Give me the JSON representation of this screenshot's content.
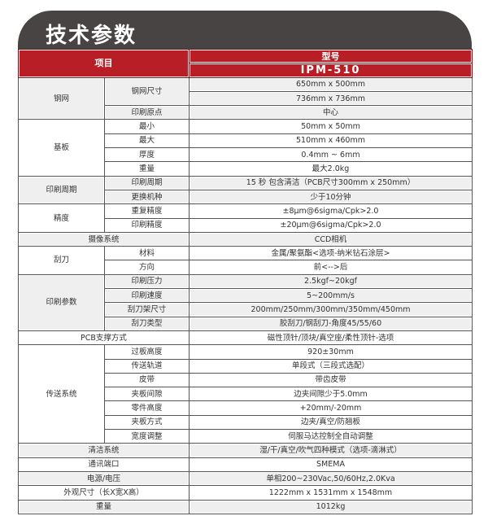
{
  "title": "技术参数",
  "header": {
    "item": "项目",
    "model_label": "型号",
    "model": "IPM-510"
  },
  "colors": {
    "banner": "#484443",
    "header_red": "#b71e25",
    "row_gray": "#efeff0"
  },
  "groups": [
    {
      "label": "钢网",
      "shade": "g",
      "items": [
        {
          "name": "钢网尺寸",
          "values": [
            "650mm x 500mm",
            "736mm x 736mm"
          ]
        },
        {
          "name": "印刷原点",
          "values": [
            "中心"
          ]
        }
      ]
    },
    {
      "label": "基板",
      "shade": "w",
      "items": [
        {
          "name": "最小",
          "values": [
            "50mm x 50mm"
          ]
        },
        {
          "name": "最大",
          "values": [
            "510mm x 460mm"
          ]
        },
        {
          "name": "厚度",
          "values": [
            "0.4mm ~ 6mm"
          ]
        },
        {
          "name": "重量",
          "values": [
            "最大2.0kg"
          ]
        }
      ]
    },
    {
      "label": "印刷周期",
      "shade": "g",
      "items": [
        {
          "name": "印刷周期",
          "values": [
            "15 秒 包含清洁（PCB尺寸300mm x 250mm）"
          ]
        },
        {
          "name": "更换机种",
          "values": [
            "少于10分钟"
          ]
        }
      ]
    },
    {
      "label": "精度",
      "shade": "w",
      "items": [
        {
          "name": "重复精度",
          "values": [
            "±8μm@6sigma/Cpk>2.0"
          ]
        },
        {
          "name": "印刷精度",
          "values": [
            "±20μm@6sigma/Cpk>2.0"
          ]
        }
      ]
    },
    {
      "label": "摄像系统",
      "shade": "g",
      "value": "CCD相机"
    },
    {
      "label": "刮刀",
      "shade": "w",
      "items": [
        {
          "name": "材料",
          "values": [
            "金属/聚氨酯<选项-纳米钻石涂层>"
          ]
        },
        {
          "name": "方向",
          "values": [
            "前<-->后"
          ]
        }
      ]
    },
    {
      "label": "印刷参数",
      "shade": "g",
      "items": [
        {
          "name": "印刷压力",
          "values": [
            "2.5kgf~20kgf"
          ]
        },
        {
          "name": "印刷速度",
          "values": [
            "5~200mm/s"
          ]
        },
        {
          "name": "刮刀架尺寸",
          "values": [
            "200mm/250mm/300mm/350mm/450mm"
          ]
        },
        {
          "name": "刮刀类型",
          "values": [
            "胶刮刀/钢刮刀-角度45/55/60"
          ]
        }
      ]
    },
    {
      "label": "PCB支撑方式",
      "shade": "w",
      "value": "磁性顶针/顶块/真空座/柔性顶针-选项"
    },
    {
      "label": "传送系统",
      "shade": "w",
      "items": [
        {
          "name": "过板高度",
          "values": [
            "920±30mm"
          ]
        },
        {
          "name": "传送轨道",
          "values": [
            "单段式（三段式选配）"
          ]
        },
        {
          "name": "皮带",
          "values": [
            "带齿皮带"
          ]
        },
        {
          "name": "夹板间隙",
          "values": [
            "边夹间隙少于5.0mm"
          ]
        },
        {
          "name": "零件高度",
          "values": [
            "+20mm/-20mm"
          ]
        },
        {
          "name": "夹板方式",
          "values": [
            "边夹/真空/防翘板"
          ]
        },
        {
          "name": "宽度调整",
          "values": [
            "伺服马达控制全自动调整"
          ]
        }
      ]
    },
    {
      "label": "清洁系统",
      "shade": "g",
      "value": "湿/干/真空/吹气四种模式（选项-滴淋式）"
    },
    {
      "label": "通讯端口",
      "shade": "w",
      "value": "SMEMA"
    },
    {
      "label": "电源/电压",
      "shade": "g",
      "value": "单相200~230Vac,50/60Hz,2.0Kva"
    },
    {
      "label": "外观尺寸（长X宽X高）",
      "shade": "w",
      "value": "1222mm x 1531mm x 1548mm"
    },
    {
      "label": "重量",
      "shade": "g",
      "value": "1012kg"
    }
  ]
}
